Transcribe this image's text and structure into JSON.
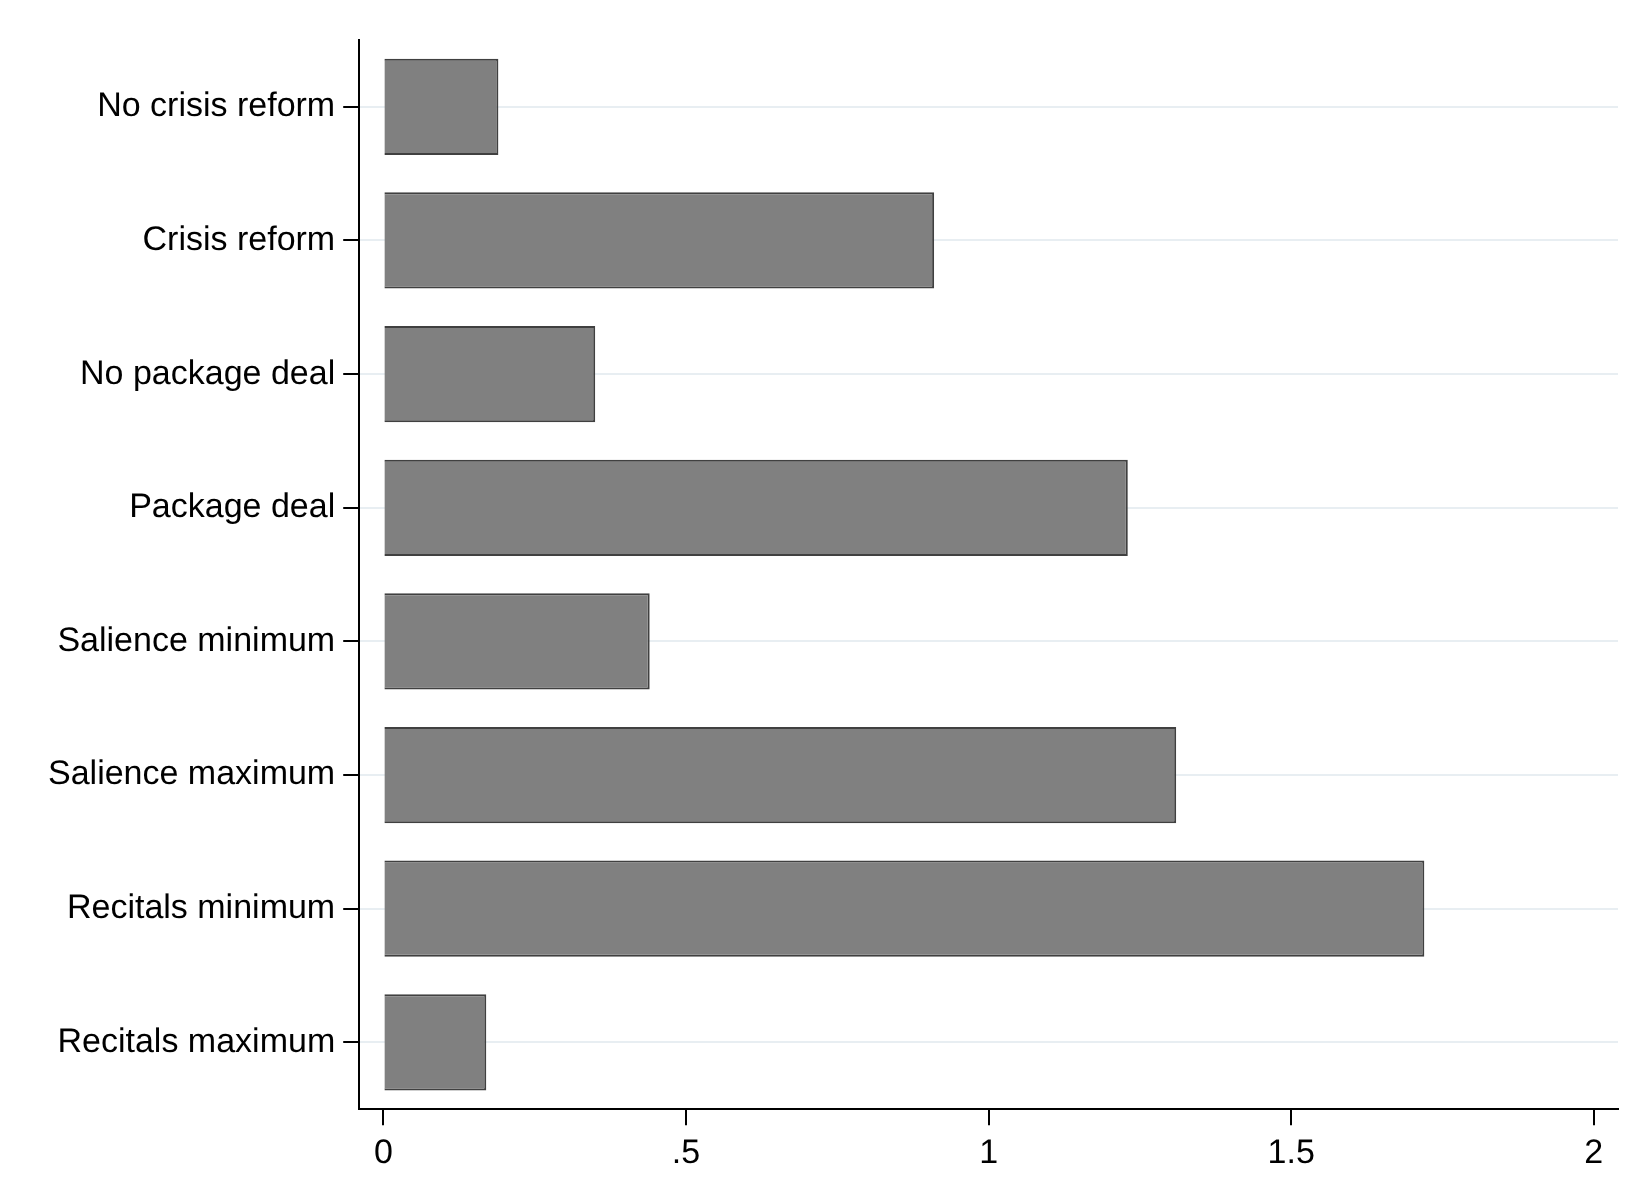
{
  "chart_data": {
    "type": "bar",
    "orientation": "horizontal",
    "categories": [
      "No crisis reform",
      "Crisis reform",
      "No package deal",
      "Package deal",
      "Salience minimum",
      "Salience maximum",
      "Recitals minimum",
      "Recitals maximum"
    ],
    "values": [
      0.19,
      0.91,
      0.35,
      1.23,
      0.44,
      1.31,
      1.72,
      0.17
    ],
    "color": "#808080",
    "xlim": [
      -0.04,
      2.04
    ],
    "xticks": [
      0,
      {
        "value": 0.5,
        "label": ".5"
      },
      1,
      1.5,
      2
    ],
    "grid": "y",
    "legend": false
  }
}
